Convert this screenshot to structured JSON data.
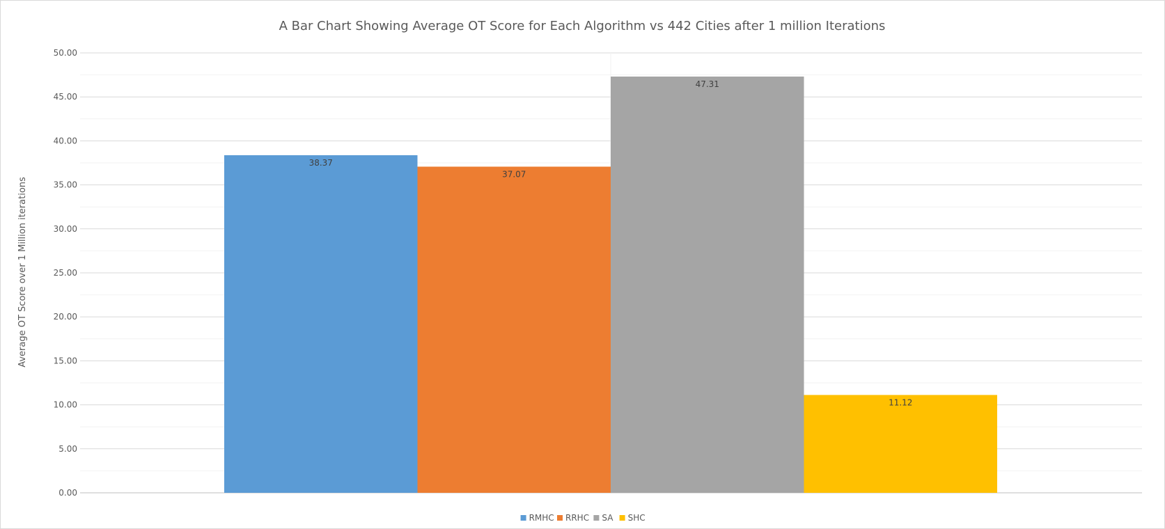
{
  "chart_data": {
    "type": "bar",
    "title": "A Bar Chart Showing Average OT Score for Each Algorithm vs 442 Cities after 1 million Iterations",
    "xlabel": "",
    "ylabel": "Average OT Score over 1 Million iterations",
    "ylim": [
      0,
      50
    ],
    "y_major_step": 5,
    "y_tick_labels": [
      "0.00",
      "5.00",
      "10.00",
      "15.00",
      "20.00",
      "25.00",
      "30.00",
      "35.00",
      "40.00",
      "45.00",
      "50.00"
    ],
    "grid": true,
    "legend_position": "bottom",
    "series": [
      {
        "name": "RMHC",
        "values": [
          38.37
        ],
        "label": "38.37",
        "color": "#5b9bd5"
      },
      {
        "name": "RRHC",
        "values": [
          37.07
        ],
        "label": "37.07",
        "color": "#ed7d31"
      },
      {
        "name": "SA",
        "values": [
          47.31
        ],
        "label": "47.31",
        "color": "#a5a5a5"
      },
      {
        "name": "SHC",
        "values": [
          11.12
        ],
        "label": "11.12",
        "color": "#ffc000"
      }
    ]
  }
}
